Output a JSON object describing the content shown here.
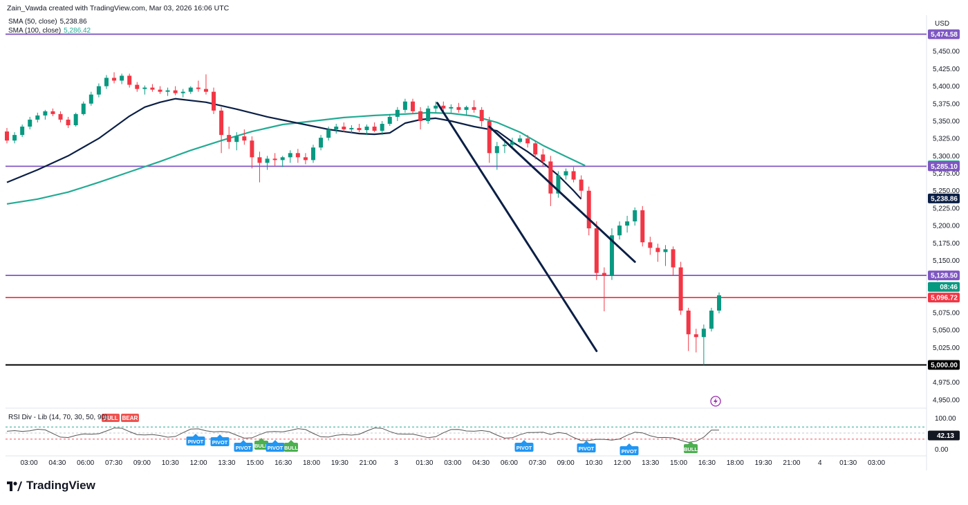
{
  "header": {
    "attribution": "Zain_Vawda created with TradingView.com, Mar 03, 2026 16:06 UTC",
    "indicators": [
      {
        "label": "SMA (50, close)",
        "value": "5,238.86",
        "color": "#0b1f45"
      },
      {
        "label": "SMA (100, close)",
        "value": "5,286.42",
        "color": "#22ab94"
      }
    ],
    "currency": "USD"
  },
  "rsi_panel": {
    "label": "RSI Div - Lib (14, 70, 30, 50, 90)",
    "badges": [
      {
        "text": "BULL",
        "kind": "bull-label"
      },
      {
        "text": "BEAR",
        "kind": "bear-label"
      }
    ],
    "axis_labels": [
      "100.00",
      "0.00"
    ],
    "current": "42.13",
    "signals": [
      {
        "text": "PIVOT",
        "x": "12:00"
      },
      {
        "text": "PIVOT",
        "x": "13:30"
      },
      {
        "text": "PIVOT",
        "x": "15:00"
      },
      {
        "text": "BULL",
        "x": "15:30"
      },
      {
        "text": "PIVOT",
        "x": "16:00"
      },
      {
        "text": "BULL",
        "x": "16:30"
      },
      {
        "text": "PIVOT",
        "x": "06:00"
      },
      {
        "text": "PIVOT",
        "x": "09:00"
      },
      {
        "text": "PIVOT",
        "x": "11:30"
      },
      {
        "text": "BULL",
        "x": "15:00"
      }
    ]
  },
  "chart_data": {
    "type": "candlestick",
    "y_axis_ticks": [
      "5,450.00",
      "5,425.00",
      "5,400.00",
      "5,375.00",
      "5,350.00",
      "5,325.00",
      "5,300.00",
      "5,275.00",
      "5,250.00",
      "5,225.00",
      "5,200.00",
      "5,175.00",
      "5,150.00",
      "5,125.00",
      "5,100.00",
      "5,075.00",
      "5,050.00",
      "5,025.00",
      "5,000.00",
      "4,975.00",
      "4,950.00"
    ],
    "y_range": [
      4940,
      5480
    ],
    "x_axis_ticks": [
      "03:00",
      "04:30",
      "06:00",
      "07:30",
      "09:00",
      "10:30",
      "12:00",
      "13:30",
      "15:00",
      "16:30",
      "18:00",
      "19:30",
      "21:00",
      "3",
      "01:30",
      "03:00",
      "04:30",
      "06:00",
      "07:30",
      "09:00",
      "10:30",
      "12:00",
      "13:30",
      "15:00",
      "16:30",
      "18:00",
      "19:30",
      "21:00",
      "4",
      "01:30",
      "03:00"
    ],
    "price_labels": [
      {
        "text": "5,474.58",
        "value": 5474.58,
        "color": "#7e57c2"
      },
      {
        "text": "5,286.42",
        "value": 5286.42,
        "color": "#22ab94"
      },
      {
        "text": "5,285.10",
        "value": 5285.1,
        "color": "#7e57c2"
      },
      {
        "text": "5,238.86",
        "value": 5238.86,
        "color": "#0b1f45"
      },
      {
        "text": "5,128.50",
        "value": 5128.5,
        "color": "#7e57c2"
      },
      {
        "text": "08:46",
        "value": 5112,
        "color": "#089981"
      },
      {
        "text": "5,096.72",
        "value": 5096.72,
        "color": "#f23645"
      },
      {
        "text": "5,000.00",
        "value": 5000.0,
        "color": "#000000"
      }
    ],
    "horizontal_lines": [
      {
        "value": 5474.58,
        "color": "#7e57c2"
      },
      {
        "value": 5285.1,
        "color": "#7e57c2"
      },
      {
        "value": 5128.5,
        "color": "#7e57c2"
      },
      {
        "value": 5096.72,
        "color": "#f23645"
      },
      {
        "value": 5000.0,
        "color": "#000000"
      }
    ],
    "trend_lines": [
      {
        "from": [
          56.2,
          5376
        ],
        "to": [
          77.0,
          5020
        ]
      },
      {
        "from": [
          63.0,
          5342
        ],
        "to": [
          82.0,
          5148
        ]
      }
    ],
    "sma_50": [
      [
        0,
        5262
      ],
      [
        4,
        5280
      ],
      [
        8,
        5300
      ],
      [
        12,
        5325
      ],
      [
        16,
        5357
      ],
      [
        18,
        5370
      ],
      [
        20,
        5377
      ],
      [
        22,
        5382
      ],
      [
        26,
        5377
      ],
      [
        30,
        5367
      ],
      [
        34,
        5356
      ],
      [
        38,
        5347
      ],
      [
        42,
        5338
      ],
      [
        46,
        5332
      ],
      [
        48,
        5331
      ],
      [
        50,
        5333
      ],
      [
        52,
        5347
      ],
      [
        54,
        5352
      ],
      [
        56,
        5354
      ],
      [
        58,
        5350
      ],
      [
        61,
        5342
      ],
      [
        64,
        5336
      ],
      [
        66,
        5320
      ],
      [
        68,
        5306
      ],
      [
        70,
        5290
      ],
      [
        72,
        5272
      ],
      [
        74,
        5250
      ],
      [
        75,
        5238
      ]
    ],
    "sma_100": [
      [
        0,
        5231
      ],
      [
        4,
        5238
      ],
      [
        8,
        5248
      ],
      [
        12,
        5262
      ],
      [
        16,
        5277
      ],
      [
        20,
        5292
      ],
      [
        24,
        5308
      ],
      [
        28,
        5322
      ],
      [
        32,
        5335
      ],
      [
        36,
        5345
      ],
      [
        40,
        5350
      ],
      [
        44,
        5355
      ],
      [
        48,
        5358
      ],
      [
        52,
        5360
      ],
      [
        55,
        5362
      ],
      [
        58,
        5361
      ],
      [
        61,
        5357
      ],
      [
        64,
        5348
      ],
      [
        67,
        5334
      ],
      [
        70,
        5315
      ],
      [
        73,
        5299
      ],
      [
        75.5,
        5286
      ]
    ],
    "candles": [
      [
        5335,
        5340,
        5318,
        5322
      ],
      [
        5322,
        5334,
        5318,
        5330
      ],
      [
        5330,
        5345,
        5327,
        5342
      ],
      [
        5342,
        5356,
        5338,
        5352
      ],
      [
        5352,
        5362,
        5348,
        5358
      ],
      [
        5358,
        5366,
        5352,
        5364
      ],
      [
        5364,
        5368,
        5357,
        5360
      ],
      [
        5360,
        5364,
        5348,
        5352
      ],
      [
        5352,
        5356,
        5340,
        5344
      ],
      [
        5344,
        5362,
        5342,
        5360
      ],
      [
        5360,
        5378,
        5358,
        5375
      ],
      [
        5375,
        5392,
        5372,
        5388
      ],
      [
        5388,
        5404,
        5384,
        5400
      ],
      [
        5400,
        5416,
        5396,
        5412
      ],
      [
        5412,
        5420,
        5404,
        5408
      ],
      [
        5408,
        5418,
        5403,
        5415
      ],
      [
        5415,
        5418,
        5398,
        5402
      ],
      [
        5402,
        5406,
        5392,
        5396
      ],
      [
        5396,
        5401,
        5388,
        5398
      ],
      [
        5398,
        5403,
        5392,
        5395
      ],
      [
        5395,
        5400,
        5389,
        5392
      ],
      [
        5392,
        5398,
        5386,
        5394
      ],
      [
        5394,
        5400,
        5387,
        5390
      ],
      [
        5390,
        5396,
        5384,
        5392
      ],
      [
        5392,
        5400,
        5389,
        5398
      ],
      [
        5398,
        5408,
        5392,
        5396
      ],
      [
        5396,
        5417,
        5388,
        5392
      ],
      [
        5392,
        5398,
        5360,
        5365
      ],
      [
        5365,
        5370,
        5304,
        5330
      ],
      [
        5330,
        5342,
        5310,
        5320
      ],
      [
        5320,
        5334,
        5308,
        5328
      ],
      [
        5328,
        5338,
        5316,
        5322
      ],
      [
        5322,
        5328,
        5282,
        5298
      ],
      [
        5298,
        5306,
        5262,
        5290
      ],
      [
        5290,
        5300,
        5280,
        5296
      ],
      [
        5296,
        5304,
        5286,
        5294
      ],
      [
        5294,
        5300,
        5284,
        5298
      ],
      [
        5298,
        5308,
        5290,
        5304
      ],
      [
        5304,
        5310,
        5290,
        5298
      ],
      [
        5298,
        5304,
        5288,
        5294
      ],
      [
        5294,
        5316,
        5290,
        5312
      ],
      [
        5312,
        5330,
        5308,
        5326
      ],
      [
        5326,
        5342,
        5322,
        5338
      ],
      [
        5338,
        5346,
        5332,
        5342
      ],
      [
        5342,
        5348,
        5334,
        5338
      ],
      [
        5338,
        5344,
        5332,
        5340
      ],
      [
        5340,
        5346,
        5334,
        5337
      ],
      [
        5337,
        5345,
        5330,
        5342
      ],
      [
        5342,
        5348,
        5334,
        5336
      ],
      [
        5336,
        5350,
        5330,
        5346
      ],
      [
        5346,
        5360,
        5343,
        5356
      ],
      [
        5356,
        5370,
        5350,
        5366
      ],
      [
        5366,
        5382,
        5362,
        5378
      ],
      [
        5378,
        5382,
        5360,
        5364
      ],
      [
        5364,
        5370,
        5338,
        5350
      ],
      [
        5350,
        5372,
        5346,
        5368
      ],
      [
        5368,
        5378,
        5362,
        5372
      ],
      [
        5372,
        5378,
        5364,
        5368
      ],
      [
        5368,
        5374,
        5362,
        5370
      ],
      [
        5370,
        5376,
        5362,
        5366
      ],
      [
        5366,
        5372,
        5358,
        5370
      ],
      [
        5370,
        5380,
        5362,
        5366
      ],
      [
        5366,
        5370,
        5342,
        5350
      ],
      [
        5350,
        5356,
        5290,
        5304
      ],
      [
        5304,
        5320,
        5280,
        5314
      ],
      [
        5314,
        5324,
        5304,
        5316
      ],
      [
        5316,
        5326,
        5310,
        5320
      ],
      [
        5320,
        5330,
        5318,
        5325
      ],
      [
        5325,
        5330,
        5312,
        5318
      ],
      [
        5318,
        5322,
        5295,
        5302
      ],
      [
        5302,
        5310,
        5285,
        5292
      ],
      [
        5292,
        5300,
        5228,
        5246
      ],
      [
        5246,
        5278,
        5240,
        5272
      ],
      [
        5272,
        5282,
        5266,
        5278
      ],
      [
        5278,
        5284,
        5262,
        5266
      ],
      [
        5266,
        5272,
        5238,
        5250
      ],
      [
        5250,
        5256,
        5186,
        5196
      ],
      [
        5196,
        5206,
        5122,
        5132
      ],
      [
        5132,
        5140,
        5077,
        5128
      ],
      [
        5128,
        5196,
        5122,
        5186
      ],
      [
        5186,
        5206,
        5180,
        5200
      ],
      [
        5200,
        5214,
        5190,
        5206
      ],
      [
        5206,
        5226,
        5200,
        5222
      ],
      [
        5222,
        5228,
        5170,
        5176
      ],
      [
        5176,
        5184,
        5158,
        5168
      ],
      [
        5168,
        5174,
        5148,
        5162
      ],
      [
        5162,
        5172,
        5142,
        5166
      ],
      [
        5166,
        5170,
        5128,
        5140
      ],
      [
        5140,
        5148,
        5072,
        5078
      ],
      [
        5078,
        5082,
        5020,
        5044
      ],
      [
        5044,
        5052,
        5018,
        5040
      ],
      [
        5040,
        5058,
        5000,
        5052
      ],
      [
        5052,
        5082,
        5048,
        5078
      ],
      [
        5078,
        5104,
        5074,
        5100
      ]
    ]
  }
}
